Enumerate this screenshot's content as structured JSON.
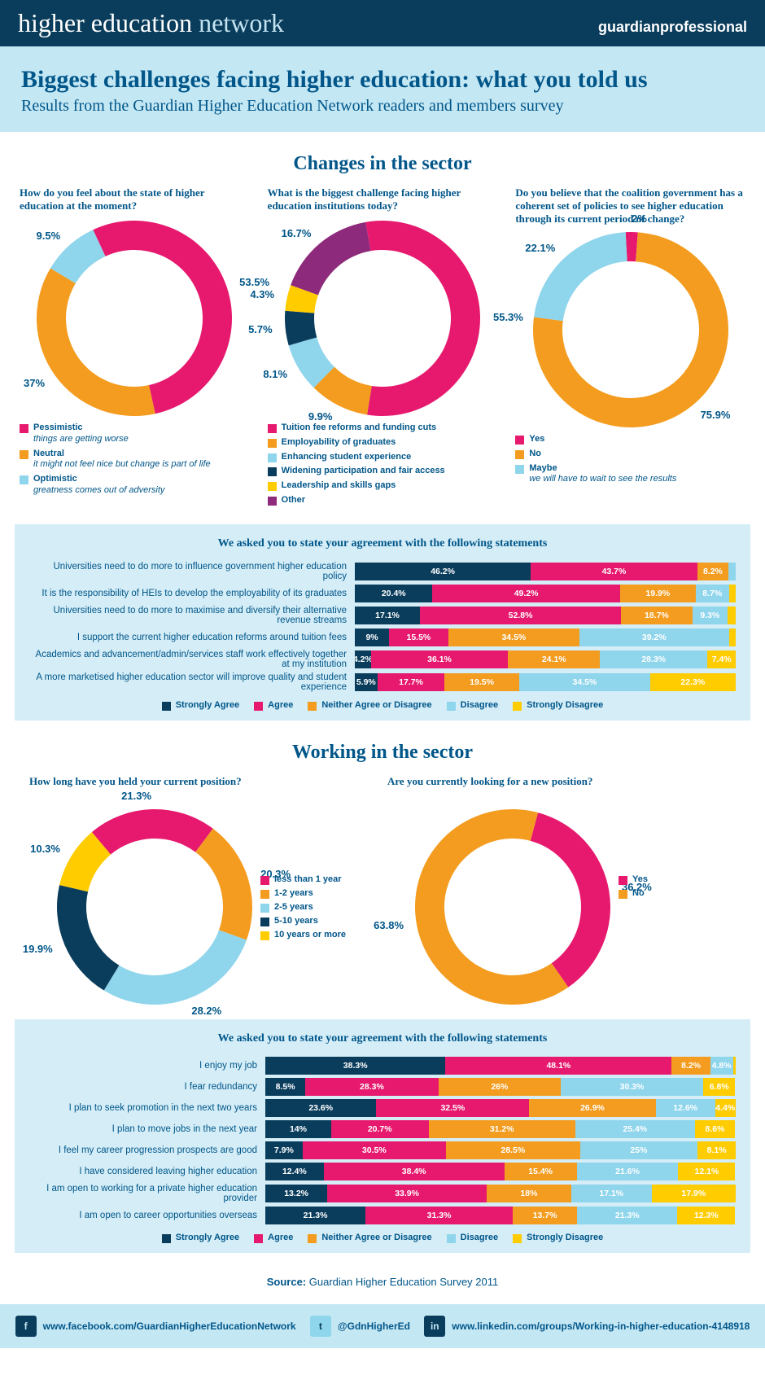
{
  "colors": {
    "strongly_agree": "#0a3d5c",
    "agree": "#e6196e",
    "neither": "#f39c1f",
    "disagree": "#8fd5ec",
    "strongly_disagree": "#ffcc00",
    "pink": "#e6196e",
    "orange": "#f39c1f",
    "lightblue": "#8fd5ec",
    "navy": "#0a3d5c",
    "yellow": "#ffcc00",
    "purple": "#8e2a7b"
  },
  "topbar": {
    "brand_bold": "higher education",
    "brand_light": " network",
    "right": "guardianprofessional"
  },
  "titleband": {
    "h1": "Biggest challenges facing higher education: what you told us",
    "h2": "Results from the Guardian Higher Education Network readers and members survey"
  },
  "section1_title": "Changes in the sector",
  "donuts1": [
    {
      "question": "How do you feel about the state of higher education at the moment?",
      "slices": [
        {
          "label": "53.5%",
          "value": 53.5,
          "color": "#e6196e"
        },
        {
          "label": "37%",
          "value": 37,
          "color": "#f39c1f"
        },
        {
          "label": "9.5%",
          "value": 9.5,
          "color": "#8fd5ec"
        }
      ],
      "legend": [
        {
          "color": "#e6196e",
          "name": "Pessimistic",
          "desc": "things are getting worse"
        },
        {
          "color": "#f39c1f",
          "name": "Neutral",
          "desc": "it might not feel nice but change is part of life"
        },
        {
          "color": "#8fd5ec",
          "name": "Optimistic",
          "desc": "greatness comes out of adversity"
        }
      ]
    },
    {
      "question": "What is the biggest challenge facing higher education institutions today?",
      "slices": [
        {
          "label": "55.3%",
          "value": 55.3,
          "color": "#e6196e"
        },
        {
          "label": "9.9%",
          "value": 9.9,
          "color": "#f39c1f"
        },
        {
          "label": "8.1%",
          "value": 8.1,
          "color": "#8fd5ec"
        },
        {
          "label": "5.7%",
          "value": 5.7,
          "color": "#0a3d5c"
        },
        {
          "label": "4.3%",
          "value": 4.3,
          "color": "#ffcc00"
        },
        {
          "label": "16.7%",
          "value": 16.7,
          "color": "#8e2a7b"
        }
      ],
      "legend": [
        {
          "color": "#e6196e",
          "name": "Tuition fee reforms and funding cuts"
        },
        {
          "color": "#f39c1f",
          "name": "Employability of graduates"
        },
        {
          "color": "#8fd5ec",
          "name": "Enhancing student experience"
        },
        {
          "color": "#0a3d5c",
          "name": "Widening participation and fair access"
        },
        {
          "color": "#ffcc00",
          "name": "Leadership and skills gaps"
        },
        {
          "color": "#8e2a7b",
          "name": "Other"
        }
      ]
    },
    {
      "question": "Do you believe that the coalition government has a coherent set of policies to see higher education through its current period of change?",
      "slices": [
        {
          "label": "2%",
          "value": 2,
          "color": "#e6196e"
        },
        {
          "label": "75.9%",
          "value": 75.9,
          "color": "#f39c1f"
        },
        {
          "label": "22.1%",
          "value": 22.1,
          "color": "#8fd5ec"
        }
      ],
      "legend": [
        {
          "color": "#e6196e",
          "name": "Yes"
        },
        {
          "color": "#f39c1f",
          "name": "No"
        },
        {
          "color": "#8fd5ec",
          "name": "Maybe",
          "desc": "we will have to wait to see the results"
        }
      ]
    }
  ],
  "stacked1": {
    "title": "We asked you to state your agreement with the following statements",
    "cats": [
      "Strongly Agree",
      "Agree",
      "Neither Agree or Disagree",
      "Disagree",
      "Strongly Disagree"
    ],
    "cat_colors": [
      "#0a3d5c",
      "#e6196e",
      "#f39c1f",
      "#8fd5ec",
      "#ffcc00"
    ],
    "rows": [
      {
        "label": "Universities need to do more to influence government higher education policy",
        "v": [
          46.2,
          43.7,
          8.2,
          1.9,
          0
        ]
      },
      {
        "label": "It is the responsibility of HEIs to develop the employability of its graduates",
        "v": [
          20.4,
          49.2,
          19.9,
          8.7,
          1.8
        ]
      },
      {
        "label": "Universities need to do more to maximise and diversify their alternative revenue streams",
        "v": [
          17.1,
          52.8,
          18.7,
          9.3,
          2.1
        ]
      },
      {
        "label": "I support the current higher education reforms around tuition fees",
        "v": [
          9,
          15.5,
          34.5,
          39.2,
          1.8
        ]
      },
      {
        "label": "Academics and advancement/admin/services staff work effectively together at my institution",
        "v": [
          4.2,
          36.1,
          24.1,
          28.3,
          7.4
        ]
      },
      {
        "label": "A more marketised higher education sector will improve quality and student experience",
        "v": [
          5.9,
          17.7,
          19.5,
          34.5,
          22.3
        ]
      }
    ]
  },
  "section2_title": "Working in the sector",
  "donuts2": [
    {
      "question": "How long have you held your current position?",
      "slices": [
        {
          "label": "21.3%",
          "value": 21.3,
          "color": "#e6196e"
        },
        {
          "label": "20.3%",
          "value": 20.3,
          "color": "#f39c1f"
        },
        {
          "label": "28.2%",
          "value": 28.2,
          "color": "#8fd5ec"
        },
        {
          "label": "19.9%",
          "value": 19.9,
          "color": "#0a3d5c"
        },
        {
          "label": "10.3%",
          "value": 10.3,
          "color": "#ffcc00"
        }
      ],
      "side_legend": [
        {
          "color": "#e6196e",
          "name": "less than 1 year"
        },
        {
          "color": "#f39c1f",
          "name": "1-2 years"
        },
        {
          "color": "#8fd5ec",
          "name": "2-5 years"
        },
        {
          "color": "#0a3d5c",
          "name": "5-10 years"
        },
        {
          "color": "#ffcc00",
          "name": "10 years or more"
        }
      ]
    },
    {
      "question": "Are you currently looking for a new position?",
      "slices": [
        {
          "label": "36.2%",
          "value": 36.2,
          "color": "#e6196e"
        },
        {
          "label": "63.8%",
          "value": 63.8,
          "color": "#f39c1f"
        }
      ],
      "side_legend": [
        {
          "color": "#e6196e",
          "name": "Yes"
        },
        {
          "color": "#f39c1f",
          "name": "No"
        }
      ]
    }
  ],
  "stacked2": {
    "title": "We asked you to state your agreement with the following statements",
    "cats": [
      "Strongly Agree",
      "Agree",
      "Neither Agree or Disagree",
      "Disagree",
      "Strongly Disagree"
    ],
    "cat_colors": [
      "#0a3d5c",
      "#e6196e",
      "#f39c1f",
      "#8fd5ec",
      "#ffcc00"
    ],
    "rows": [
      {
        "label": "I enjoy my job",
        "v": [
          38.3,
          48.1,
          8.2,
          4.8,
          0.6
        ]
      },
      {
        "label": "I fear redundancy",
        "v": [
          8.5,
          28.3,
          26,
          30.3,
          6.8
        ]
      },
      {
        "label": "I plan to seek promotion in the next two years",
        "v": [
          23.6,
          32.5,
          26.9,
          12.6,
          4.4
        ]
      },
      {
        "label": "I plan to move jobs in the next year",
        "v": [
          14,
          20.7,
          31.2,
          25.4,
          8.6
        ]
      },
      {
        "label": "I feel my career progression prospects are good",
        "v": [
          7.9,
          30.5,
          28.5,
          25,
          8.1
        ]
      },
      {
        "label": "I have considered leaving higher education",
        "v": [
          12.4,
          38.4,
          15.4,
          21.6,
          12.1
        ]
      },
      {
        "label": "I am open to working for a private higher education provider",
        "v": [
          13.2,
          33.9,
          18,
          17.1,
          17.9
        ]
      },
      {
        "label": "I am open to career opportunities overseas",
        "v": [
          21.3,
          31.3,
          13.7,
          21.3,
          12.3
        ]
      }
    ]
  },
  "source_label": "Source:",
  "source_value": "Guardian Higher Education Survey 2011",
  "footer": {
    "fb": "www.facebook.com/GuardianHigherEducationNetwork",
    "tw": "@GdnHigherEd",
    "li": "www.linkedin.com/groups/Working-in-higher-education-4148918"
  }
}
